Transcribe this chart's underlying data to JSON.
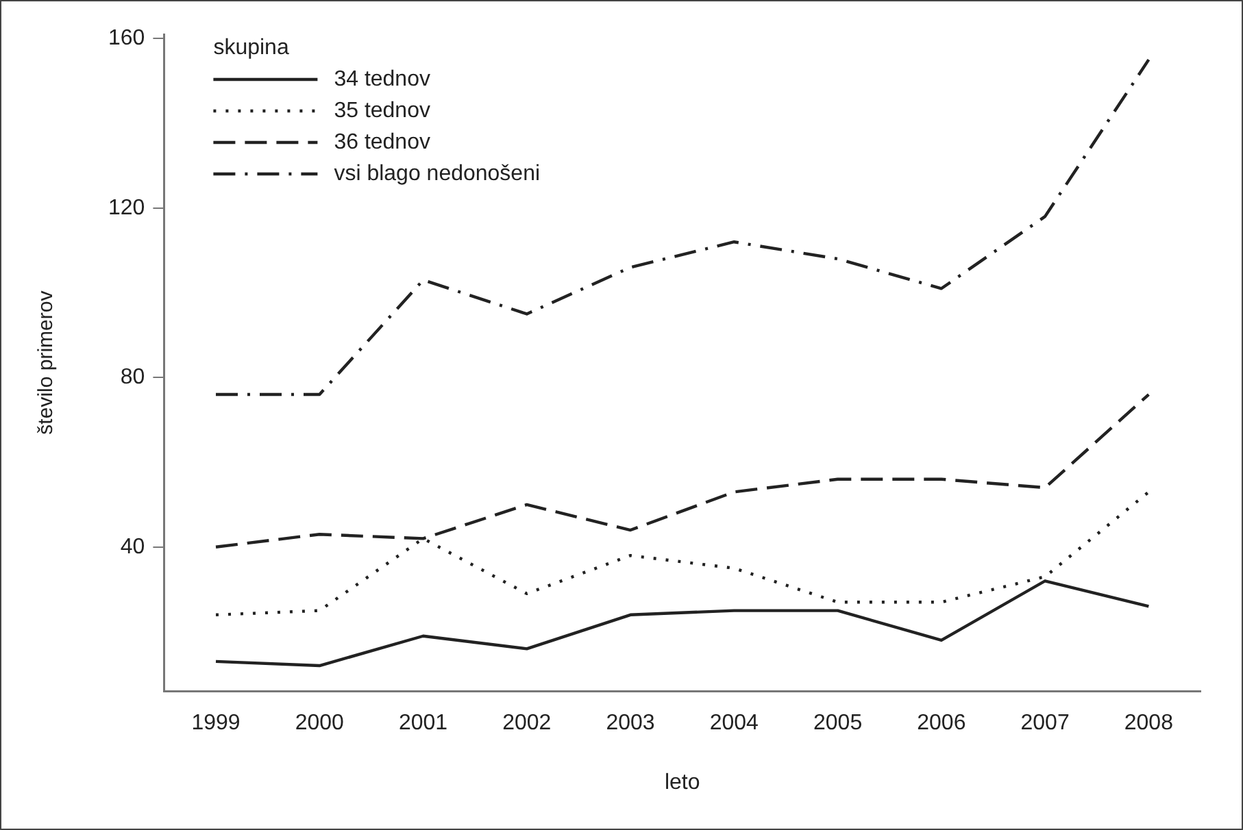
{
  "chart_data": {
    "type": "line",
    "xlabel": "leto",
    "ylabel": "število primerov",
    "legend_title": "skupina",
    "legend": "top left",
    "grid": false,
    "marker": "none",
    "categories": [
      "1999",
      "2000",
      "2001",
      "2002",
      "2003",
      "2004",
      "2005",
      "2006",
      "2007",
      "2008"
    ],
    "ylim": [
      6,
      161
    ],
    "yticks": [
      40,
      80,
      120,
      160
    ],
    "series": [
      {
        "name": "34 tednov",
        "color": "#222222",
        "line_style": "solid",
        "values": [
          13,
          12,
          19,
          16,
          24,
          25,
          25,
          18,
          32,
          26
        ]
      },
      {
        "name": "35 tednov",
        "color": "#222222",
        "line_style": "dotted",
        "values": [
          24,
          25,
          42,
          29,
          38,
          35,
          27,
          27,
          33,
          53
        ]
      },
      {
        "name": "36 tednov",
        "color": "#222222",
        "line_style": "dashed",
        "values": [
          40,
          43,
          42,
          50,
          44,
          53,
          56,
          56,
          54,
          76
        ]
      },
      {
        "name": "vsi blago nedonošeni",
        "color": "#222222",
        "line_style": "dashdot",
        "values": [
          76,
          76,
          103,
          95,
          106,
          112,
          108,
          101,
          118,
          155
        ]
      }
    ]
  }
}
